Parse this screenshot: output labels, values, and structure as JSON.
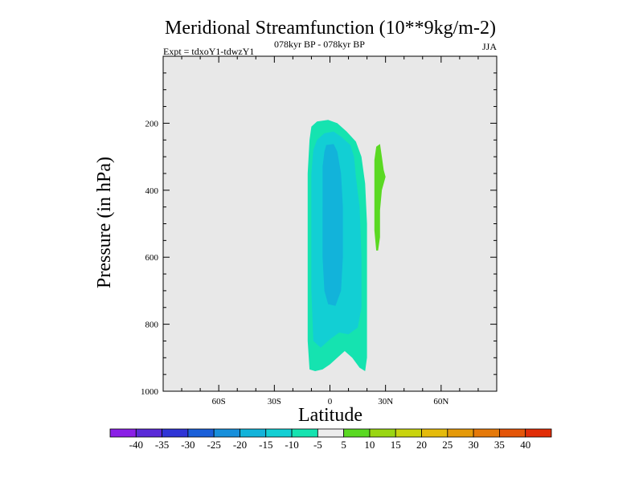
{
  "chart_data": {
    "type": "contour",
    "title": "Meridional Streamfunction (10**9kg/m-2)",
    "subtitle_left": "Expt = tdxoY1-tdwzY1",
    "subtitle_center": "078kyr BP - 078kyr BP",
    "subtitle_right": "JJA",
    "xlabel": "Latitude",
    "ylabel": "Pressure (in hPa)",
    "xlim": [
      -90,
      90
    ],
    "ylim": [
      1000,
      0
    ],
    "x_ticks": [
      {
        "value": -60,
        "label": "60S"
      },
      {
        "value": -30,
        "label": "30S"
      },
      {
        "value": 0,
        "label": "0"
      },
      {
        "value": 30,
        "label": "30N"
      },
      {
        "value": 60,
        "label": "60N"
      }
    ],
    "y_ticks": [
      {
        "value": 200,
        "label": "200"
      },
      {
        "value": 400,
        "label": "400"
      },
      {
        "value": 600,
        "label": "600"
      },
      {
        "value": 800,
        "label": "800"
      },
      {
        "value": 1000,
        "label": "1000"
      }
    ],
    "contour_regions": [
      {
        "level": -10,
        "points": [
          [
            -10,
            210
          ],
          [
            -7,
            195
          ],
          [
            -1,
            190
          ],
          [
            4,
            200
          ],
          [
            9,
            225
          ],
          [
            14,
            255
          ],
          [
            17,
            300
          ],
          [
            19,
            380
          ],
          [
            20,
            500
          ],
          [
            20,
            650
          ],
          [
            20,
            800
          ],
          [
            20,
            900
          ],
          [
            19,
            940
          ],
          [
            16,
            930
          ],
          [
            12,
            900
          ],
          [
            8,
            880
          ],
          [
            4,
            900
          ],
          [
            0,
            920
          ],
          [
            -4,
            935
          ],
          [
            -8,
            940
          ],
          [
            -11,
            935
          ],
          [
            -12,
            850
          ],
          [
            -12,
            700
          ],
          [
            -12,
            500
          ],
          [
            -12,
            350
          ],
          [
            -11,
            250
          ]
        ]
      },
      {
        "level": -15,
        "points": [
          [
            -7,
            250
          ],
          [
            -3,
            230
          ],
          [
            2,
            225
          ],
          [
            6,
            240
          ],
          [
            11,
            265
          ],
          [
            13,
            300
          ],
          [
            14,
            360
          ],
          [
            16,
            450
          ],
          [
            17,
            600
          ],
          [
            17,
            750
          ],
          [
            15,
            810
          ],
          [
            10,
            830
          ],
          [
            5,
            825
          ],
          [
            0,
            845
          ],
          [
            -5,
            870
          ],
          [
            -9,
            850
          ],
          [
            -10,
            700
          ],
          [
            -10,
            500
          ],
          [
            -10,
            350
          ],
          [
            -9,
            280
          ]
        ]
      },
      {
        "level": -20,
        "points": [
          [
            -2,
            265
          ],
          [
            2,
            262
          ],
          [
            4,
            285
          ],
          [
            6,
            350
          ],
          [
            7,
            450
          ],
          [
            7,
            600
          ],
          [
            6,
            700
          ],
          [
            3,
            745
          ],
          [
            -1,
            740
          ],
          [
            -3,
            700
          ],
          [
            -4,
            600
          ],
          [
            -4,
            450
          ],
          [
            -4,
            330
          ],
          [
            -3,
            285
          ]
        ]
      },
      {
        "level": 5,
        "points": [
          [
            24,
            310
          ],
          [
            25,
            270
          ],
          [
            27,
            262
          ],
          [
            28,
            300
          ],
          [
            29,
            340
          ],
          [
            30,
            360
          ],
          [
            28,
            400
          ],
          [
            27,
            460
          ],
          [
            27,
            540
          ],
          [
            26,
            580
          ],
          [
            25,
            580
          ],
          [
            24,
            520
          ],
          [
            24,
            440
          ],
          [
            24,
            380
          ]
        ]
      }
    ],
    "colorbar": {
      "colors": [
        "#8a1fe6",
        "#5a2ad8",
        "#2f34d6",
        "#1a5fd9",
        "#178fdb",
        "#12b3da",
        "#12cfd4",
        "#15e3b0",
        "#ececec",
        "#5ad922",
        "#9ad612",
        "#c9d40e",
        "#e5bb0b",
        "#e59a0a",
        "#e57909",
        "#e45508",
        "#e12d07"
      ],
      "labels": [
        "-40",
        "-35",
        "-30",
        "-25",
        "-20",
        "-15",
        "-10",
        "-5",
        "5",
        "10",
        "15",
        "20",
        "25",
        "30",
        "35",
        "40"
      ],
      "level_colors": {
        "-20": "#12b3da",
        "-15": "#12cfd4",
        "-10": "#15e3b0",
        "5": "#5ad922"
      }
    }
  }
}
